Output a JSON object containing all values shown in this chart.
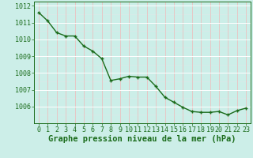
{
  "x": [
    0,
    1,
    2,
    3,
    4,
    5,
    6,
    7,
    8,
    9,
    10,
    11,
    12,
    13,
    14,
    15,
    16,
    17,
    18,
    19,
    20,
    21,
    22,
    23
  ],
  "y": [
    1011.6,
    1011.1,
    1010.4,
    1010.2,
    1010.2,
    1009.6,
    1009.3,
    1008.85,
    1007.55,
    1007.65,
    1007.8,
    1007.75,
    1007.75,
    1007.2,
    1006.55,
    1006.25,
    1005.95,
    1005.7,
    1005.65,
    1005.65,
    1005.7,
    1005.5,
    1005.75,
    1005.9
  ],
  "xlim": [
    -0.5,
    23.5
  ],
  "ylim": [
    1005.0,
    1012.25
  ],
  "yticks": [
    1006,
    1007,
    1008,
    1009,
    1010,
    1011,
    1012
  ],
  "xticks": [
    0,
    1,
    2,
    3,
    4,
    5,
    6,
    7,
    8,
    9,
    10,
    11,
    12,
    13,
    14,
    15,
    16,
    17,
    18,
    19,
    20,
    21,
    22,
    23
  ],
  "xlabel": "Graphe pression niveau de la mer (hPa)",
  "line_color": "#1a6b1a",
  "marker_color": "#1a6b1a",
  "bg_color": "#cceee8",
  "grid_color_major": "#ffffff",
  "grid_color_minor_x": "#f0b8b8",
  "grid_color_minor_y": "#dde8e8",
  "tick_color": "#1a6b1a",
  "label_color": "#1a6b1a",
  "xlabel_fontsize": 7.5,
  "tick_fontsize": 6.0,
  "line_width": 1.0,
  "marker_size": 3.5
}
